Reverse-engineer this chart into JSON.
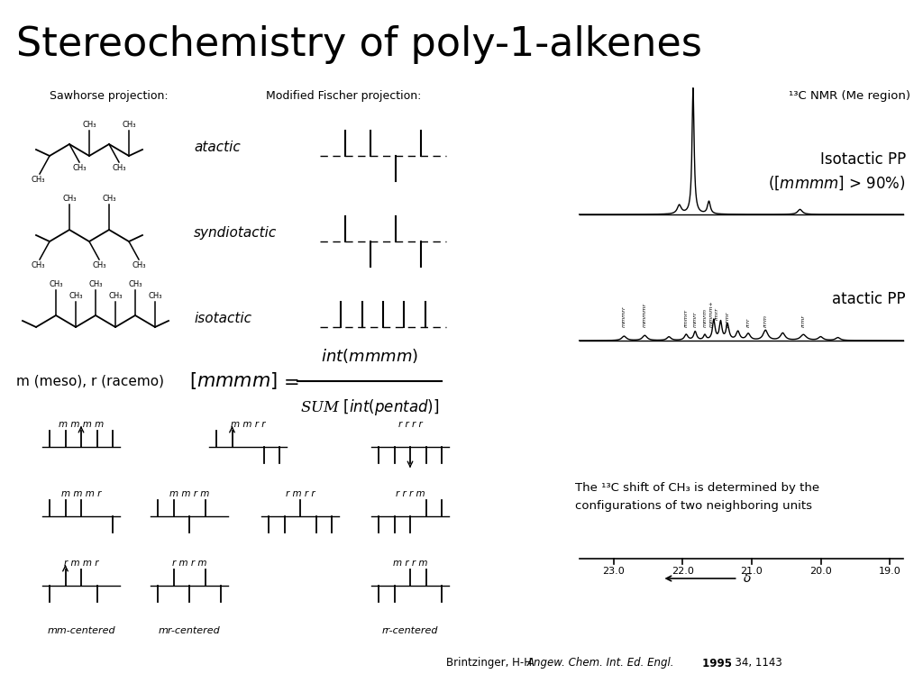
{
  "title": "Stereochemistry of poly-1-alkenes",
  "title_fontsize": 30,
  "background_color": "#ffffff",
  "sawhorse_label": "Sawhorse projection:",
  "fischer_label": "Modified Fischer projection:",
  "nmr_label": "¹³C NMR (Me region)",
  "isotactic_pp_1": "Isotactic PP",
  "isotactic_pp_2": "([mmmm] > 90%)",
  "atactic_pp": "atactic PP",
  "meso_racemo": "m (meso), r (racemo)",
  "pentad_row1": [
    "m m m m",
    "m m r r",
    "r r r r"
  ],
  "pentad_row2": [
    "m m m r",
    "m m r m",
    "r m r r",
    "r r r m"
  ],
  "pentad_row3": [
    "r m m r",
    "r m r m",
    "m r r m"
  ],
  "pentad_centers": [
    "mm-centered",
    "mr-centered",
    "rr-centered"
  ],
  "nmr_caption_1": "The ¹³C shift of CH₃ is determined by the",
  "nmr_caption_2": "configurations of two neighboring units",
  "ref_normal": "Brintzinger, H-H. ",
  "ref_italic": "Angew. Chem. Int. Ed. Engl.",
  "ref_bold": " 1995",
  "ref_end": ", 34, 1143",
  "fig_width": 10.24,
  "fig_height": 7.68,
  "dpi": 100
}
